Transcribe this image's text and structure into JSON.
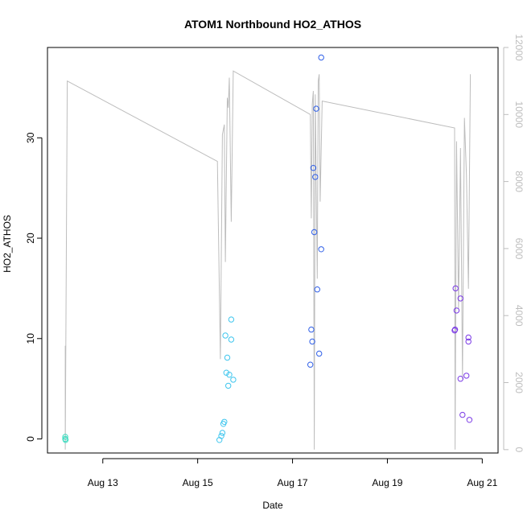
{
  "chart_data": {
    "type": "scatter",
    "title": "ATOM1 Northbound HO2_ATHOS",
    "xlabel": "Date",
    "ylabel": "HO2_ATHOS",
    "x_range": [
      "2016-08-11 20:00",
      "2016-08-21 08:00"
    ],
    "ylim": [
      -1.4,
      39.0
    ],
    "y_ticks": [
      0,
      10,
      20,
      30
    ],
    "x_ticks": [
      {
        "label": "Aug 13",
        "date": "2016-08-13"
      },
      {
        "label": "Aug 15",
        "date": "2016-08-15"
      },
      {
        "label": "Aug 17",
        "date": "2016-08-17"
      },
      {
        "label": "Aug 19",
        "date": "2016-08-19"
      },
      {
        "label": "Aug 21",
        "date": "2016-08-21"
      }
    ],
    "secondary_axis": {
      "ylim": [
        -100,
        12000
      ],
      "ticks": [
        0,
        2000,
        4000,
        6000,
        8000,
        10000,
        12000
      ],
      "color": "#bdbdbd"
    },
    "grid": false,
    "points": [
      {
        "x": "2016-08-12 05:00",
        "y": 0.2,
        "color": "#3ddcc0"
      },
      {
        "x": "2016-08-12 05:00",
        "y": 0.0,
        "color": "#3ddcc0"
      },
      {
        "x": "2016-08-12 05:10",
        "y": -0.1,
        "color": "#3ddcc0"
      },
      {
        "x": "2016-08-15 11:00",
        "y": -0.1,
        "color": "#3fc6ee"
      },
      {
        "x": "2016-08-15 12:00",
        "y": 0.3,
        "color": "#3fc6ee"
      },
      {
        "x": "2016-08-15 12:30",
        "y": 0.6,
        "color": "#3fc6ee"
      },
      {
        "x": "2016-08-15 13:00",
        "y": 1.5,
        "color": "#3fc6ee"
      },
      {
        "x": "2016-08-15 13:30",
        "y": 1.7,
        "color": "#3fc6ee"
      },
      {
        "x": "2016-08-15 14:00",
        "y": 10.3,
        "color": "#3fc6ee"
      },
      {
        "x": "2016-08-15 14:30",
        "y": 6.6,
        "color": "#3fc6ee"
      },
      {
        "x": "2016-08-15 15:00",
        "y": 8.1,
        "color": "#3fc6ee"
      },
      {
        "x": "2016-08-15 15:30",
        "y": 5.3,
        "color": "#3fc6ee"
      },
      {
        "x": "2016-08-15 16:00",
        "y": 6.4,
        "color": "#3fc6ee"
      },
      {
        "x": "2016-08-15 17:00",
        "y": 11.9,
        "color": "#3fc6ee"
      },
      {
        "x": "2016-08-15 17:00",
        "y": 9.9,
        "color": "#3fc6ee"
      },
      {
        "x": "2016-08-15 18:00",
        "y": 5.9,
        "color": "#3fc6ee"
      },
      {
        "x": "2016-08-17 09:00",
        "y": 7.4,
        "color": "#2f5fe8"
      },
      {
        "x": "2016-08-17 09:30",
        "y": 10.9,
        "color": "#2f5fe8"
      },
      {
        "x": "2016-08-17 10:00",
        "y": 9.7,
        "color": "#2f5fe8"
      },
      {
        "x": "2016-08-17 10:30",
        "y": 27.0,
        "color": "#2f5fe8"
      },
      {
        "x": "2016-08-17 11:00",
        "y": 20.6,
        "color": "#2f5fe8"
      },
      {
        "x": "2016-08-17 11:30",
        "y": 26.1,
        "color": "#2f5fe8"
      },
      {
        "x": "2016-08-17 12:00",
        "y": 32.9,
        "color": "#2f5fe8"
      },
      {
        "x": "2016-08-17 12:30",
        "y": 14.9,
        "color": "#2f5fe8"
      },
      {
        "x": "2016-08-17 13:30",
        "y": 8.5,
        "color": "#2f5fe8"
      },
      {
        "x": "2016-08-17 14:30",
        "y": 18.9,
        "color": "#2f5fe8"
      },
      {
        "x": "2016-08-17 14:30",
        "y": 38.0,
        "color": "#2f5fe8"
      },
      {
        "x": "2016-08-20 10:00",
        "y": 10.8,
        "color": "#7b3ae6"
      },
      {
        "x": "2016-08-20 10:15",
        "y": 10.9,
        "color": "#7b3ae6"
      },
      {
        "x": "2016-08-20 10:30",
        "y": 15.0,
        "color": "#7b3ae6"
      },
      {
        "x": "2016-08-20 11:00",
        "y": 12.8,
        "color": "#7b3ae6"
      },
      {
        "x": "2016-08-20 13:00",
        "y": 14.0,
        "color": "#7b3ae6"
      },
      {
        "x": "2016-08-20 13:00",
        "y": 6.0,
        "color": "#7b3ae6"
      },
      {
        "x": "2016-08-20 14:00",
        "y": 2.4,
        "color": "#7b3ae6"
      },
      {
        "x": "2016-08-20 16:00",
        "y": 6.3,
        "color": "#7b3ae6"
      },
      {
        "x": "2016-08-20 17:00",
        "y": 10.1,
        "color": "#7b3ae6"
      },
      {
        "x": "2016-08-20 17:00",
        "y": 9.7,
        "color": "#7b3ae6"
      },
      {
        "x": "2016-08-20 17:30",
        "y": 1.9,
        "color": "#7b3ae6"
      }
    ],
    "line_series": {
      "axis": "secondary",
      "color": "#bdbdbd",
      "points": [
        {
          "x": "2016-08-12 05:00",
          "y": 3100
        },
        {
          "x": "2016-08-12 05:00",
          "y": 0
        },
        {
          "x": "2016-08-12 06:00",
          "y": 11000
        },
        {
          "x": "2016-08-15 10:00",
          "y": 8600
        },
        {
          "x": "2016-08-15 11:30",
          "y": 2700
        },
        {
          "x": "2016-08-15 12:30",
          "y": 9400
        },
        {
          "x": "2016-08-15 13:30",
          "y": 9700
        },
        {
          "x": "2016-08-15 14:00",
          "y": 5600
        },
        {
          "x": "2016-08-15 15:00",
          "y": 10500
        },
        {
          "x": "2016-08-15 15:30",
          "y": 10200
        },
        {
          "x": "2016-08-15 16:00",
          "y": 11100
        },
        {
          "x": "2016-08-15 17:00",
          "y": 6800
        },
        {
          "x": "2016-08-15 18:00",
          "y": 11300
        },
        {
          "x": "2016-08-17 09:00",
          "y": 10000
        },
        {
          "x": "2016-08-17 09:30",
          "y": 6900
        },
        {
          "x": "2016-08-17 10:00",
          "y": 10300
        },
        {
          "x": "2016-08-17 10:30",
          "y": 10700
        },
        {
          "x": "2016-08-17 11:00",
          "y": 0
        },
        {
          "x": "2016-08-17 11:30",
          "y": 10600
        },
        {
          "x": "2016-08-17 12:30",
          "y": 5100
        },
        {
          "x": "2016-08-17 13:00",
          "y": 11000
        },
        {
          "x": "2016-08-17 13:30",
          "y": 11200
        },
        {
          "x": "2016-08-17 14:00",
          "y": 7400
        },
        {
          "x": "2016-08-17 15:00",
          "y": 10400
        },
        {
          "x": "2016-08-20 10:00",
          "y": 9600
        },
        {
          "x": "2016-08-20 10:15",
          "y": 0
        },
        {
          "x": "2016-08-20 11:00",
          "y": 9200
        },
        {
          "x": "2016-08-20 12:00",
          "y": 4200
        },
        {
          "x": "2016-08-20 13:00",
          "y": 9000
        },
        {
          "x": "2016-08-20 14:00",
          "y": 2100
        },
        {
          "x": "2016-08-20 15:00",
          "y": 9900
        },
        {
          "x": "2016-08-20 16:00",
          "y": 8200
        },
        {
          "x": "2016-08-20 17:00",
          "y": 4800
        },
        {
          "x": "2016-08-20 18:00",
          "y": 11200
        }
      ]
    }
  }
}
